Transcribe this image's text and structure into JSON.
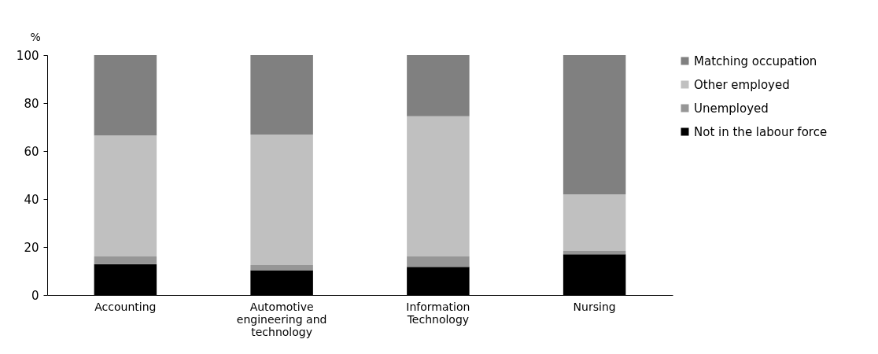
{
  "chart_data": {
    "type": "bar",
    "stacked": true,
    "ylabel": "%",
    "categories": [
      "Accounting",
      "Automotive engineering and technology",
      "Information Technology",
      "Nursing"
    ],
    "series": [
      {
        "name": "Not in the labour force",
        "color": "#000000",
        "values": [
          12.9,
          10.3,
          11.7,
          17.0
        ]
      },
      {
        "name": "Unemployed",
        "color": "#969696",
        "values": [
          3.2,
          2.2,
          4.4,
          1.4
        ]
      },
      {
        "name": "Other employed",
        "color": "#c0c0c0",
        "values": [
          50.4,
          54.4,
          58.4,
          23.6
        ]
      },
      {
        "name": "Matching occupation",
        "color": "#808080",
        "values": [
          33.5,
          33.1,
          25.5,
          58.0
        ]
      }
    ],
    "ylim": [
      0,
      100
    ],
    "yticks": [
      0,
      20,
      40,
      60,
      80,
      100
    ],
    "grid": false,
    "legend": "right"
  }
}
